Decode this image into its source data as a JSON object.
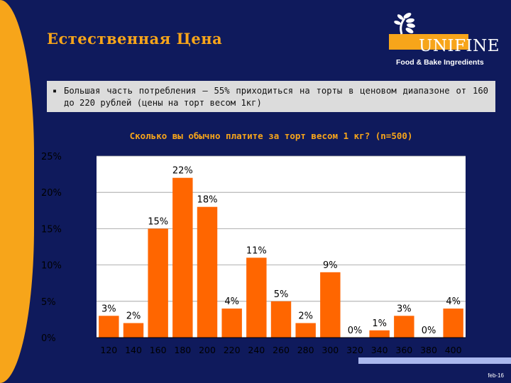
{
  "header": {
    "title": "Естественная Цена"
  },
  "logo": {
    "name": "UNIFINE",
    "subtitle": "Food & Bake Ingredients",
    "color": "#f7a51a"
  },
  "bullet": {
    "text": "Большая часть потребления – 55% приходиться на торты в ценовом диапазоне от 160 до 220 рублей (цены на торт весом 1кг)"
  },
  "chart_data": {
    "type": "bar",
    "title": "Сколько вы обычно платите за торт весом 1 кг? (n=500)",
    "categories": [
      "120",
      "140",
      "160",
      "180",
      "200",
      "220",
      "240",
      "260",
      "280",
      "300",
      "320",
      "340",
      "360",
      "380",
      "400"
    ],
    "values": [
      3,
      2,
      15,
      22,
      18,
      4,
      11,
      5,
      2,
      9,
      0,
      1,
      3,
      0,
      4
    ],
    "data_labels": [
      "3%",
      "2%",
      "15%",
      "22%",
      "18%",
      "4%",
      "11%",
      "5%",
      "2%",
      "9%",
      "0%",
      "1%",
      "3%",
      "0%",
      "4%"
    ],
    "y_ticks": [
      0,
      5,
      10,
      15,
      20,
      25
    ],
    "y_tick_labels": [
      "0%",
      "5%",
      "10%",
      "15%",
      "20%",
      "25%"
    ],
    "ylim": [
      0,
      25
    ],
    "bar_color": "#ff6600",
    "plot_background": "#ffffff",
    "grid": true,
    "legend": false
  },
  "footer": {
    "page_label": "feb-16"
  }
}
